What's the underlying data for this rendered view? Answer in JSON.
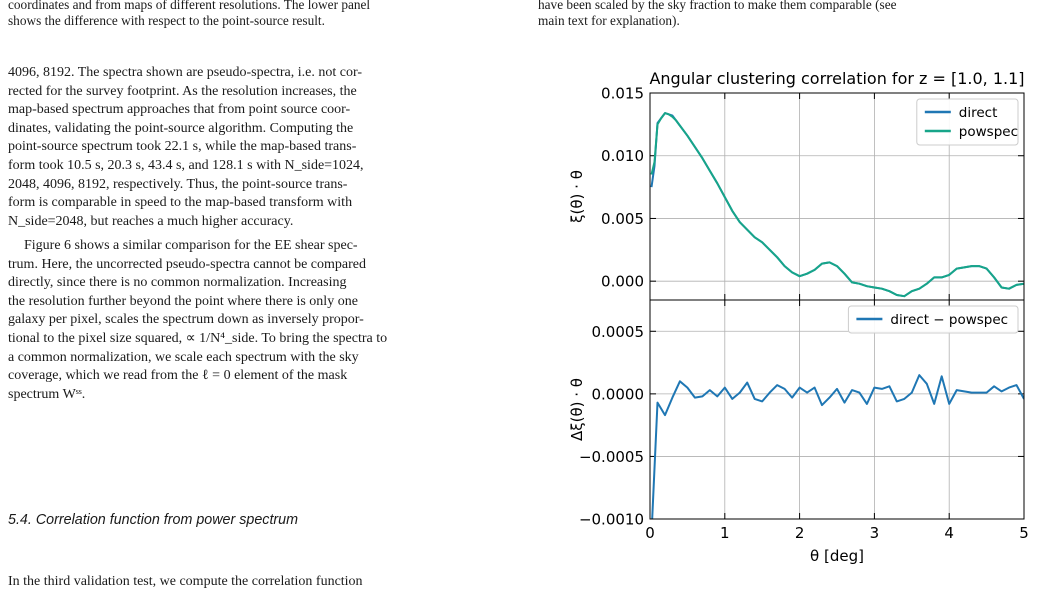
{
  "left_column": {
    "caption_tail": [
      "coordinates and from maps of different resolutions. The lower panel",
      "shows the difference with respect to the point-source result."
    ],
    "para1": [
      "4096, 8192. The spectra shown are pseudo-spectra, i.e. not cor-",
      "rected for the survey footprint. As the resolution increases, the",
      "map-based spectrum approaches that from point source coor-",
      "dinates, validating the point-source algorithm. Computing the",
      "point-source spectrum took 22.1 s, while the map-based trans-",
      "form took 10.5 s, 20.3 s, 43.4 s, and 128.1 s with N_side=1024,",
      "2048, 4096, 8192, respectively. Thus, the point-source trans-",
      "form is comparable in speed to the map-based transform with",
      "N_side=2048, but reaches a much higher accuracy."
    ],
    "para2": [
      "Figure 6 shows a similar comparison for the EE shear spec-",
      "trum. Here, the uncorrected pseudo-spectra cannot be compared",
      "directly, since there is no common normalization. Increasing",
      "the resolution further beyond the point where there is only one",
      "galaxy per pixel, scales the spectrum down as inversely propor-",
      "tional to the pixel size squared, ∝ 1/N⁴_side. To bring the spectra to",
      "a common normalization, we scale each spectrum with the sky",
      "coverage, which we read from the ℓ = 0 element of the mask",
      "spectrum Wˢˢ."
    ],
    "section_heading": "5.4. Correlation function from power spectrum",
    "para3_fragment": "In the third validation test, we compute the correlation function"
  },
  "right_column": {
    "caption_tail": [
      "have been scaled by the sky fraction to make them comparable (see",
      "main text for explanation)."
    ]
  },
  "chart_data": [
    {
      "type": "line",
      "title": "Angular clustering correlation for z = [1.0, 1.1]",
      "xlabel": "",
      "ylabel": "ξ(θ) · θ",
      "xlim": [
        0,
        5
      ],
      "ylim": [
        -0.0015,
        0.015
      ],
      "yticks": [
        "0.015",
        "0.010",
        "0.005",
        "0.000"
      ],
      "grid": true,
      "legend_position": "top-right",
      "series": [
        {
          "name": "direct",
          "color": "#1f77b4",
          "x": [
            0.02,
            0.06,
            0.1,
            0.15,
            0.2,
            0.25,
            0.3,
            0.35,
            0.4,
            0.5,
            0.6,
            0.7,
            0.8,
            0.9,
            1.0,
            1.1,
            1.2,
            1.3,
            1.4,
            1.5,
            1.6,
            1.7,
            1.8,
            1.9,
            2.0,
            2.1,
            2.2,
            2.3,
            2.4,
            2.5,
            2.6,
            2.7,
            2.8,
            2.9,
            3.0,
            3.1,
            3.2,
            3.3,
            3.4,
            3.5,
            3.6,
            3.7,
            3.8,
            3.9,
            4.0,
            4.1,
            4.2,
            4.3,
            4.4,
            4.5,
            4.6,
            4.7,
            4.8,
            4.9,
            5.0
          ],
          "y": [
            0.0075,
            0.0092,
            0.0126,
            0.013,
            0.0134,
            0.0133,
            0.0132,
            0.0128,
            0.0124,
            0.0116,
            0.0107,
            0.0098,
            0.0088,
            0.0078,
            0.0067,
            0.0056,
            0.0047,
            0.0041,
            0.0035,
            0.0031,
            0.0025,
            0.0019,
            0.0012,
            0.0007,
            0.0004,
            0.0006,
            0.0009,
            0.0014,
            0.0015,
            0.0012,
            0.0006,
            -0.0001,
            -0.0002,
            -0.0004,
            -0.0005,
            -0.0006,
            -0.0008,
            -0.0011,
            -0.0012,
            -0.0008,
            -0.0006,
            -0.0002,
            0.0003,
            0.0003,
            0.0005,
            0.001,
            0.0011,
            0.0012,
            0.0012,
            0.001,
            0.0003,
            -0.0005,
            -0.0006,
            -0.0003,
            -0.0002
          ]
        },
        {
          "name": "powspec",
          "color": "#17a589",
          "x": [
            0.02,
            0.06,
            0.1,
            0.15,
            0.2,
            0.25,
            0.3,
            0.35,
            0.4,
            0.5,
            0.6,
            0.7,
            0.8,
            0.9,
            1.0,
            1.1,
            1.2,
            1.3,
            1.4,
            1.5,
            1.6,
            1.7,
            1.8,
            1.9,
            2.0,
            2.1,
            2.2,
            2.3,
            2.4,
            2.5,
            2.6,
            2.7,
            2.8,
            2.9,
            3.0,
            3.1,
            3.2,
            3.3,
            3.4,
            3.5,
            3.6,
            3.7,
            3.8,
            3.9,
            4.0,
            4.1,
            4.2,
            4.3,
            4.4,
            4.5,
            4.6,
            4.7,
            4.8,
            4.9,
            5.0
          ],
          "y": [
            0.0085,
            0.0095,
            0.0125,
            0.013,
            0.0134,
            0.0133,
            0.0131,
            0.0128,
            0.0124,
            0.0116,
            0.0107,
            0.0098,
            0.0088,
            0.0078,
            0.0067,
            0.0056,
            0.0047,
            0.0041,
            0.0035,
            0.0031,
            0.0025,
            0.0019,
            0.0012,
            0.0007,
            0.0004,
            0.0006,
            0.0009,
            0.0014,
            0.0015,
            0.0012,
            0.0006,
            -0.0001,
            -0.0002,
            -0.0004,
            -0.0005,
            -0.0006,
            -0.0008,
            -0.0011,
            -0.0012,
            -0.0008,
            -0.0006,
            -0.0002,
            0.0003,
            0.0003,
            0.0005,
            0.001,
            0.0011,
            0.0012,
            0.0012,
            0.001,
            0.0003,
            -0.0005,
            -0.0006,
            -0.0003,
            -0.0002
          ]
        }
      ]
    },
    {
      "type": "line",
      "title": "",
      "xlabel": "θ [deg]",
      "ylabel": "Δξ(θ) · θ",
      "xlim": [
        0,
        5
      ],
      "ylim": [
        -0.001,
        0.00075
      ],
      "xticks": [
        "0",
        "1",
        "2",
        "3",
        "4",
        "5"
      ],
      "yticks": [
        "0.0005",
        "0.0000",
        "−0.0005",
        "−0.0010"
      ],
      "grid": true,
      "legend_position": "top-right",
      "series": [
        {
          "name": "direct − powspec",
          "color": "#1f77b4",
          "x": [
            0.02,
            0.1,
            0.2,
            0.3,
            0.4,
            0.5,
            0.6,
            0.7,
            0.8,
            0.9,
            1.0,
            1.1,
            1.2,
            1.3,
            1.4,
            1.5,
            1.6,
            1.7,
            1.8,
            1.9,
            2.0,
            2.1,
            2.2,
            2.3,
            2.4,
            2.5,
            2.6,
            2.7,
            2.8,
            2.9,
            3.0,
            3.1,
            3.2,
            3.3,
            3.4,
            3.5,
            3.6,
            3.7,
            3.8,
            3.9,
            4.0,
            4.1,
            4.2,
            4.3,
            4.4,
            4.5,
            4.6,
            4.7,
            4.8,
            4.9,
            5.0
          ],
          "y": [
            -0.00112,
            -7e-05,
            -0.00017,
            -3e-05,
            0.0001,
            5e-05,
            -3e-05,
            -2e-05,
            3e-05,
            -2e-05,
            5e-05,
            -4e-05,
            1e-05,
            9e-05,
            -4e-05,
            -6e-05,
            1e-05,
            7e-05,
            4e-05,
            -3e-05,
            5e-05,
            1e-05,
            5e-05,
            -9e-05,
            -3e-05,
            4e-05,
            -7e-05,
            3e-05,
            1e-05,
            -8e-05,
            5e-05,
            4e-05,
            6e-05,
            -6e-05,
            -4e-05,
            1e-05,
            0.00015,
            8e-05,
            -8e-05,
            0.00014,
            -8e-05,
            3e-05,
            2e-05,
            1e-05,
            1e-05,
            1e-05,
            6e-05,
            2e-05,
            5e-05,
            7e-05,
            -4e-05
          ]
        }
      ]
    }
  ]
}
